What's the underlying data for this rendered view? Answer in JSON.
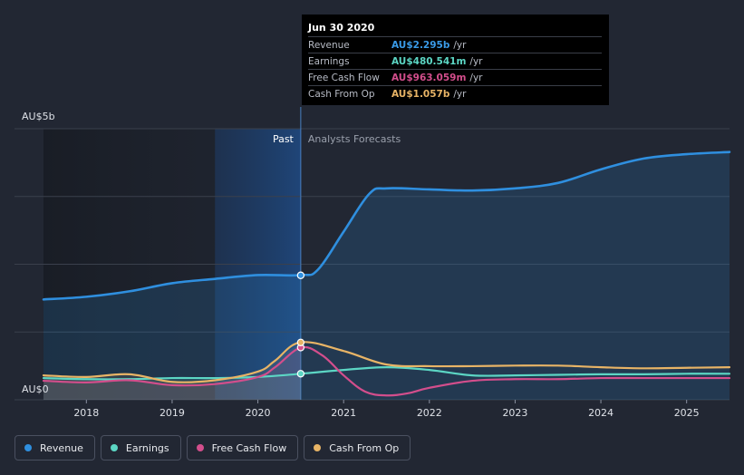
{
  "colors": {
    "background": "#222733",
    "revenue": "#2f8fdf",
    "earnings": "#5cd6c4",
    "free_cash_flow": "#d34e8c",
    "cash_from_op": "#e8b466",
    "grid": "#3a404c",
    "axis_text": "#dfe2e8"
  },
  "tooltip": {
    "title": "Jun 30 2020",
    "rows": [
      {
        "label": "Revenue",
        "value": "AU$2.295b",
        "unit": "/yr",
        "color": "#3a9be8"
      },
      {
        "label": "Earnings",
        "value": "AU$480.541m",
        "unit": "/yr",
        "color": "#5cd6c4"
      },
      {
        "label": "Free Cash Flow",
        "value": "AU$963.059m",
        "unit": "/yr",
        "color": "#d34e8c"
      },
      {
        "label": "Cash From Op",
        "value": "AU$1.057b",
        "unit": "/yr",
        "color": "#e8b466"
      }
    ]
  },
  "legend": [
    {
      "label": "Revenue",
      "color": "#2f8fdf"
    },
    {
      "label": "Earnings",
      "color": "#5cd6c4"
    },
    {
      "label": "Free Cash Flow",
      "color": "#d34e8c"
    },
    {
      "label": "Cash From Op",
      "color": "#e8b466"
    }
  ],
  "chart_data": {
    "type": "line",
    "title": "",
    "xlabel": "",
    "ylabel": "",
    "y_top_label": "AU$5b",
    "y_bottom_label": "AU$0",
    "past_label": "Past",
    "forecast_label": "Analysts Forecasts",
    "ylim": [
      0,
      5
    ],
    "xlim": [
      2017.5,
      2025.5
    ],
    "divider_x": 2020.5,
    "past_shade_start": 2019.5,
    "x_ticks": [
      "2018",
      "2019",
      "2020",
      "2021",
      "2022",
      "2023",
      "2024",
      "2025"
    ],
    "series": [
      {
        "name": "Revenue",
        "area": true,
        "x": [
          2017.5,
          2018.0,
          2018.5,
          2019.0,
          2019.5,
          2020.0,
          2020.5,
          2020.7,
          2021.0,
          2021.3,
          2021.5,
          2022.0,
          2022.5,
          2023.0,
          2023.5,
          2024.0,
          2024.5,
          2025.0,
          2025.5
        ],
        "values": [
          1.85,
          1.9,
          2.0,
          2.15,
          2.23,
          2.3,
          2.3,
          2.4,
          3.1,
          3.8,
          3.9,
          3.88,
          3.86,
          3.9,
          4.0,
          4.25,
          4.45,
          4.53,
          4.57
        ]
      },
      {
        "name": "Earnings",
        "area": false,
        "x": [
          2017.5,
          2018.0,
          2018.5,
          2019.0,
          2019.5,
          2020.0,
          2020.5,
          2021.0,
          2021.5,
          2022.0,
          2022.5,
          2023.0,
          2023.5,
          2024.0,
          2024.5,
          2025.0,
          2025.5
        ],
        "values": [
          0.4,
          0.38,
          0.38,
          0.4,
          0.4,
          0.42,
          0.48,
          0.55,
          0.6,
          0.55,
          0.45,
          0.45,
          0.46,
          0.47,
          0.47,
          0.48,
          0.48
        ]
      },
      {
        "name": "Free Cash Flow",
        "area": false,
        "x": [
          2017.5,
          2018.0,
          2018.5,
          2019.0,
          2019.5,
          2020.0,
          2020.2,
          2020.5,
          2020.75,
          2021.0,
          2021.25,
          2021.5,
          2021.75,
          2022.0,
          2022.5,
          2023.0,
          2023.5,
          2024.0,
          2024.5,
          2025.0,
          2025.5
        ],
        "values": [
          0.35,
          0.32,
          0.36,
          0.27,
          0.29,
          0.42,
          0.6,
          0.96,
          0.82,
          0.45,
          0.15,
          0.08,
          0.12,
          0.22,
          0.35,
          0.38,
          0.38,
          0.4,
          0.4,
          0.4,
          0.4
        ]
      },
      {
        "name": "Cash From Op",
        "area": false,
        "x": [
          2017.5,
          2018.0,
          2018.5,
          2019.0,
          2019.5,
          2020.0,
          2020.2,
          2020.5,
          2021.0,
          2021.5,
          2022.0,
          2022.5,
          2023.0,
          2023.5,
          2024.0,
          2024.5,
          2025.0,
          2025.5
        ],
        "values": [
          0.45,
          0.42,
          0.47,
          0.33,
          0.36,
          0.52,
          0.72,
          1.06,
          0.9,
          0.65,
          0.62,
          0.62,
          0.63,
          0.63,
          0.6,
          0.58,
          0.59,
          0.6
        ]
      }
    ],
    "markers": [
      {
        "series": "Revenue",
        "x": 2020.5,
        "y": 2.295
      },
      {
        "series": "Earnings",
        "x": 2020.5,
        "y": 0.48
      },
      {
        "series": "Free Cash Flow",
        "x": 2020.5,
        "y": 0.963
      },
      {
        "series": "Cash From Op",
        "x": 2020.5,
        "y": 1.057
      }
    ]
  }
}
